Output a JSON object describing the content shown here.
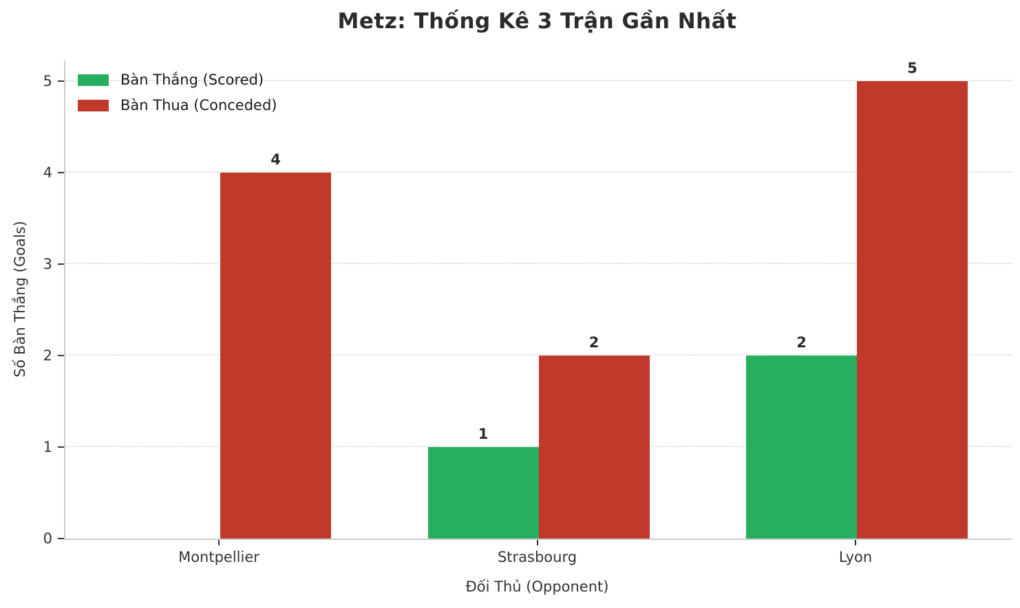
{
  "chart_data": {
    "type": "bar",
    "title": "Metz: Thống Kê 3 Trận Gần Nhất",
    "xlabel": "Đối Thủ (Opponent)",
    "ylabel": "Số Bàn Thắng (Goals)",
    "categories": [
      "Montpellier",
      "Strasbourg",
      "Lyon"
    ],
    "series": [
      {
        "key": "scored",
        "name": "Bàn Thắng (Scored)",
        "color": "#27ae60",
        "values": [
          0,
          1,
          2
        ]
      },
      {
        "key": "conceded",
        "name": "Bàn Thua (Conceded)",
        "color": "#c0392b",
        "values": [
          4,
          2,
          5
        ]
      }
    ],
    "yticks": [
      0,
      1,
      2,
      3,
      4,
      5
    ],
    "ylim": [
      0,
      5.23
    ],
    "grid": true,
    "grid_style": "dotted",
    "bar_value_labels": [
      {
        "category": "Montpellier",
        "scored": null,
        "conceded": 4
      },
      {
        "category": "Strasbourg",
        "scored": 1,
        "conceded": 2
      },
      {
        "category": "Lyon",
        "scored": 2,
        "conceded": 5
      }
    ],
    "legend_position": "upper left",
    "colors": {
      "scored": "#27ae60",
      "conceded": "#c0392b",
      "title_text": "#2b2b2b",
      "tick_text": "#333333",
      "grid": "#d9d9d9",
      "spine": "#cccccc"
    }
  }
}
